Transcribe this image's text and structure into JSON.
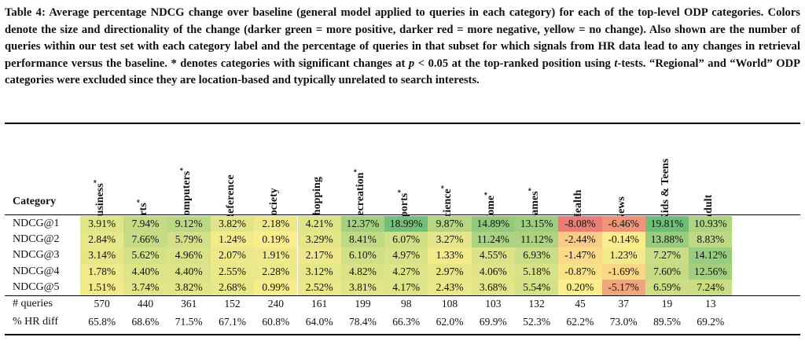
{
  "caption": {
    "label": "Table 4:",
    "part1": " Average percentage NDCG change over baseline (general model applied to queries in each category) for each of the top-level ODP categories. Colors denote the size and directionality of the change (darker green = more positive, darker red = more negative, yellow = no change). Also shown are the number of queries within our test set with each category label and the percentage of queries in that subset for which signals from HR data lead to any changes in retrieval performance versus the baseline. * denotes categories with significant changes at ",
    "p_var": "p",
    "part2": " < 0.05 at the top-ranked position using ",
    "t_var": "t",
    "part3": "-tests. “Regional” and “World” ODP categories were excluded since they are location-based and typically unrelated to search interests."
  },
  "table": {
    "corner_label": "Category",
    "columns": [
      {
        "name": "Business",
        "sig": "*"
      },
      {
        "name": "Arts",
        "sig": "*"
      },
      {
        "name": "Computers",
        "sig": "*"
      },
      {
        "name": "Reference",
        "sig": ""
      },
      {
        "name": "Society",
        "sig": ""
      },
      {
        "name": "Shopping",
        "sig": ""
      },
      {
        "name": "Recreation",
        "sig": "*"
      },
      {
        "name": "Sports",
        "sig": "*"
      },
      {
        "name": "Science",
        "sig": "*"
      },
      {
        "name": "Home",
        "sig": "*"
      },
      {
        "name": "Games",
        "sig": "*"
      },
      {
        "name": "Health",
        "sig": ""
      },
      {
        "name": "News",
        "sig": ""
      },
      {
        "name": "Kids & Teens",
        "sig": ""
      },
      {
        "name": "Adult",
        "sig": ""
      }
    ],
    "rows": [
      {
        "label": "NDCG@1",
        "values": [
          "3.91%",
          "7.94%",
          "9.12%",
          "3.82%",
          "2.18%",
          "4.21%",
          "12.37%",
          "18.99%",
          "9.87%",
          "14.89%",
          "13.15%",
          "-8.08%",
          "-6.46%",
          "19.81%",
          "10.93%"
        ]
      },
      {
        "label": "NDCG@2",
        "values": [
          "2.84%",
          "7.66%",
          "5.79%",
          "1.24%",
          "0.19%",
          "3.29%",
          "8.41%",
          "6.07%",
          "3.27%",
          "11.24%",
          "11.12%",
          "-2.44%",
          "-0.14%",
          "13.88%",
          "8.83%"
        ]
      },
      {
        "label": "NDCG@3",
        "values": [
          "3.14%",
          "5.62%",
          "4.96%",
          "2.07%",
          "1.91%",
          "2.17%",
          "6.10%",
          "4.97%",
          "1.33%",
          "4.55%",
          "6.93%",
          "-1.47%",
          "1.23%",
          "7.27%",
          "14.12%"
        ]
      },
      {
        "label": "NDCG@4",
        "values": [
          "1.78%",
          "4.40%",
          "4.40%",
          "2.55%",
          "2.28%",
          "3.12%",
          "4.82%",
          "4.27%",
          "2.97%",
          "4.06%",
          "5.18%",
          "-0.87%",
          "-1.69%",
          "7.60%",
          "12.56%"
        ]
      },
      {
        "label": "NDCG@5",
        "values": [
          "1.51%",
          "3.74%",
          "3.82%",
          "2.68%",
          "0.99%",
          "2.52%",
          "3.81%",
          "4.17%",
          "2.43%",
          "3.68%",
          "5.54%",
          "0.20%",
          "-5.17%",
          "6.59%",
          "7.24%"
        ]
      }
    ],
    "stats": [
      {
        "label": "# queries",
        "values": [
          "570",
          "440",
          "361",
          "152",
          "240",
          "161",
          "199",
          "98",
          "108",
          "103",
          "132",
          "45",
          "37",
          "19",
          "13"
        ]
      },
      {
        "label": "% HR diff",
        "values": [
          "65.8%",
          "68.6%",
          "71.5%",
          "67.1%",
          "60.8%",
          "64.0%",
          "78.4%",
          "66.3%",
          "62.0%",
          "69.9%",
          "52.3%",
          "62.2%",
          "73.0%",
          "89.5%",
          "69.2%"
        ]
      }
    ]
  }
}
